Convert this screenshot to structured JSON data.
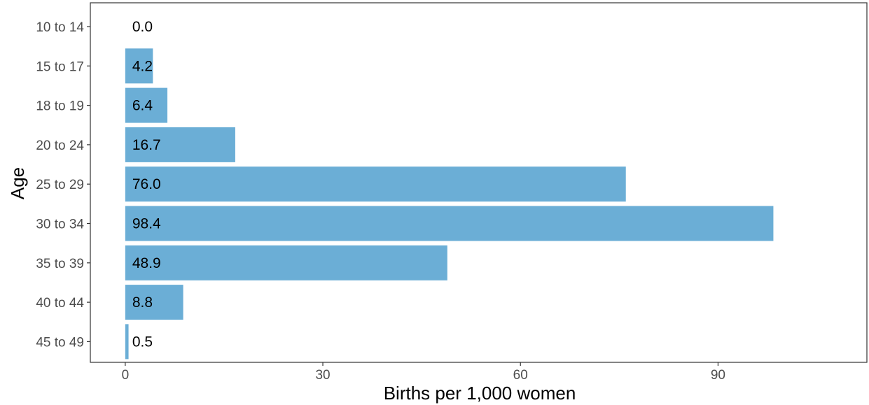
{
  "chart_data": {
    "type": "bar",
    "orientation": "horizontal",
    "categories": [
      "10 to 14",
      "15 to 17",
      "18 to 19",
      "20 to 24",
      "25 to 29",
      "30 to 34",
      "35 to 39",
      "40 to 44",
      "45 to 49"
    ],
    "values": [
      0.0,
      4.2,
      6.4,
      16.7,
      76.0,
      98.4,
      48.9,
      8.8,
      0.5
    ],
    "data_labels": [
      "0.0",
      "4.2",
      "6.4",
      "16.7",
      "76.0",
      "98.4",
      "48.9",
      "8.8",
      "0.5"
    ],
    "xlabel": "Births per 1,000 women",
    "ylabel": "Age",
    "xlim": [
      -5.3,
      112.6
    ],
    "xticks": [
      0,
      30,
      60,
      90
    ],
    "xtick_labels": [
      "0",
      "30",
      "60",
      "90"
    ],
    "grid": false,
    "legend": "none",
    "colors": {
      "bar": "#6baed6",
      "axis": "#333333",
      "tick_text": "#4d4d4d"
    }
  }
}
